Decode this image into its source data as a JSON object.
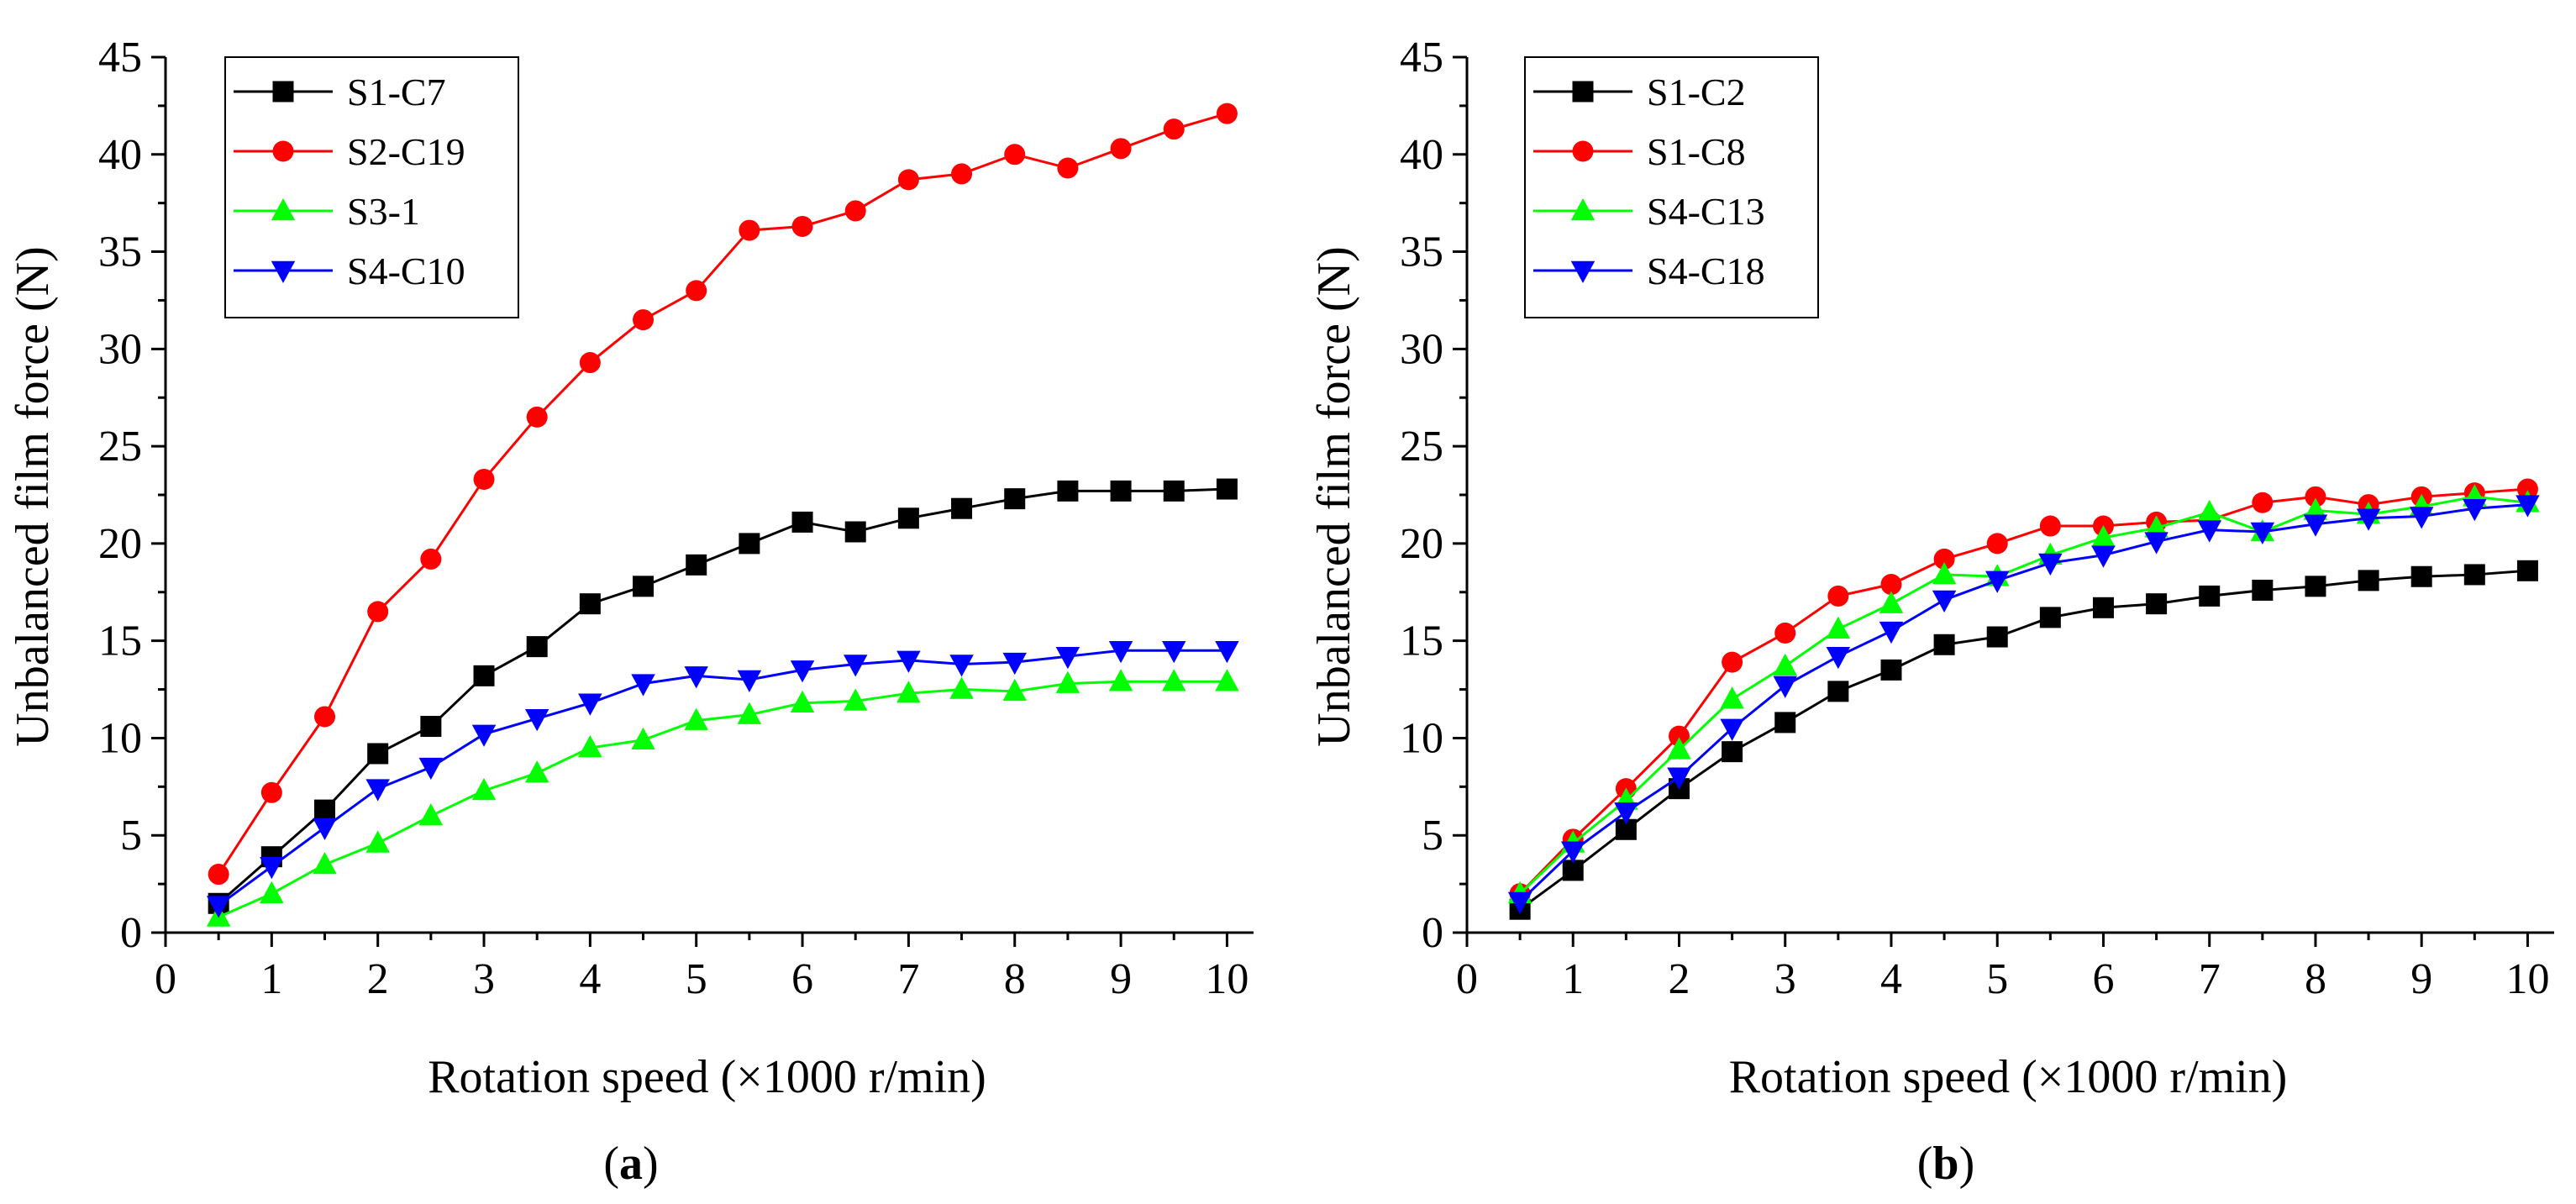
{
  "panels": [
    {
      "paren_open": "(",
      "letter": "a",
      "paren_close": ")"
    },
    {
      "paren_open": "(",
      "letter": "b",
      "paren_close": ")"
    }
  ],
  "chart_data": [
    {
      "type": "line",
      "panel": "a",
      "xlabel": "Rotation speed (×1000 r/min)",
      "ylabel": "Unbalanced film force (N)",
      "xlim": [
        0,
        10.25
      ],
      "ylim": [
        0,
        45
      ],
      "xticks": [
        0,
        1,
        2,
        3,
        4,
        5,
        6,
        7,
        8,
        9,
        10
      ],
      "yticks": [
        0,
        5,
        10,
        15,
        20,
        25,
        30,
        35,
        40,
        45
      ],
      "x": [
        0.5,
        1,
        1.5,
        2,
        2.5,
        3,
        3.5,
        4,
        4.5,
        5,
        5.5,
        6,
        6.5,
        7,
        7.5,
        8,
        8.5,
        9,
        9.5,
        10
      ],
      "legend_position": "top-left",
      "series": [
        {
          "name": "S1-C7",
          "color": "#000000",
          "marker": "square",
          "values": [
            1.5,
            3.9,
            6.3,
            9.2,
            10.6,
            13.2,
            14.7,
            16.9,
            17.8,
            18.9,
            20.0,
            21.1,
            20.6,
            21.3,
            21.8,
            22.3,
            22.7,
            22.7,
            22.7,
            22.8
          ]
        },
        {
          "name": "S2-C19",
          "color": "#ff0000",
          "marker": "circle",
          "values": [
            3.0,
            7.2,
            11.1,
            16.5,
            19.2,
            23.3,
            26.5,
            29.3,
            31.5,
            33.0,
            36.1,
            36.3,
            37.1,
            38.7,
            39.0,
            40.0,
            39.3,
            40.3,
            41.3,
            42.1
          ]
        },
        {
          "name": "S3-1",
          "color": "#00ff00",
          "marker": "triangle-up",
          "values": [
            0.8,
            2.0,
            3.5,
            4.6,
            6.0,
            7.3,
            8.2,
            9.5,
            9.9,
            10.9,
            11.2,
            11.8,
            11.9,
            12.3,
            12.5,
            12.4,
            12.8,
            12.9,
            12.9,
            12.9
          ]
        },
        {
          "name": "S4-C10",
          "color": "#0000ff",
          "marker": "triangle-down",
          "values": [
            1.4,
            3.4,
            5.4,
            7.4,
            8.5,
            10.2,
            11.0,
            11.8,
            12.8,
            13.2,
            13.0,
            13.5,
            13.8,
            14.0,
            13.8,
            13.9,
            14.2,
            14.5,
            14.5,
            14.5
          ]
        }
      ]
    },
    {
      "type": "line",
      "panel": "b",
      "xlabel": "Rotation speed (×1000 r/min)",
      "ylabel": "Unbalanced film force (N)",
      "xlim": [
        0,
        10.25
      ],
      "ylim": [
        0,
        45
      ],
      "xticks": [
        0,
        1,
        2,
        3,
        4,
        5,
        6,
        7,
        8,
        9,
        10
      ],
      "yticks": [
        0,
        5,
        10,
        15,
        20,
        25,
        30,
        35,
        40,
        45
      ],
      "x": [
        0.5,
        1,
        1.5,
        2,
        2.5,
        3,
        3.5,
        4,
        4.5,
        5,
        5.5,
        6,
        6.5,
        7,
        7.5,
        8,
        8.5,
        9,
        9.5,
        10
      ],
      "legend_position": "top-left",
      "series": [
        {
          "name": "S1-C2",
          "color": "#000000",
          "marker": "square",
          "values": [
            1.2,
            3.2,
            5.3,
            7.4,
            9.3,
            10.8,
            12.4,
            13.5,
            14.8,
            15.2,
            16.2,
            16.7,
            16.9,
            17.3,
            17.6,
            17.8,
            18.1,
            18.3,
            18.4,
            18.6
          ]
        },
        {
          "name": "S1-C8",
          "color": "#ff0000",
          "marker": "circle",
          "values": [
            2.0,
            4.8,
            7.4,
            10.1,
            13.9,
            15.4,
            17.3,
            17.9,
            19.2,
            20.0,
            20.9,
            20.9,
            21.1,
            21.2,
            22.1,
            22.4,
            22.0,
            22.4,
            22.6,
            22.8
          ]
        },
        {
          "name": "S4-C13",
          "color": "#00ff00",
          "marker": "triangle-up",
          "values": [
            2.0,
            4.6,
            6.8,
            9.4,
            12.0,
            13.7,
            15.6,
            16.9,
            18.4,
            18.3,
            19.4,
            20.3,
            20.8,
            21.6,
            20.6,
            21.7,
            21.5,
            21.9,
            22.4,
            22.1
          ]
        },
        {
          "name": "S4-C18",
          "color": "#0000ff",
          "marker": "triangle-down",
          "values": [
            1.6,
            4.2,
            6.2,
            8.0,
            10.5,
            12.7,
            14.2,
            15.5,
            17.1,
            18.1,
            19.0,
            19.4,
            20.1,
            20.7,
            20.6,
            21.0,
            21.3,
            21.4,
            21.8,
            22.0
          ]
        }
      ]
    }
  ]
}
